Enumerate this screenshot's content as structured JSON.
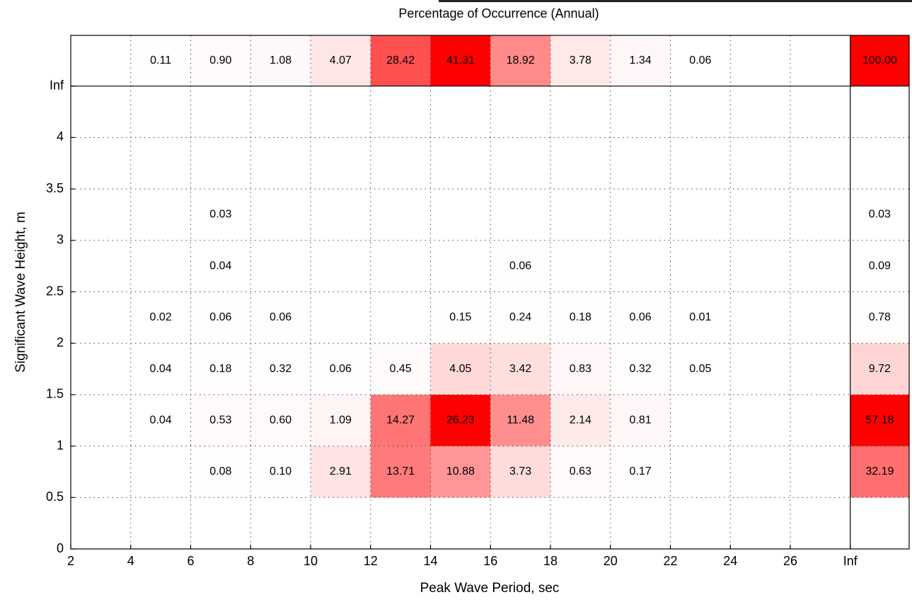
{
  "chart_data": {
    "type": "heatmap",
    "title": "Percentage of Occurrence (Annual)",
    "x_label": "Peak Wave Period, sec",
    "y_label": "Significant Wave Height, m",
    "x_edges": [
      2,
      4,
      6,
      8,
      10,
      12,
      14,
      16,
      18,
      20,
      22,
      24,
      26,
      "Inf"
    ],
    "y_edges": [
      0,
      0.5,
      1,
      1.5,
      2,
      2.5,
      3,
      3.5,
      4,
      "Inf"
    ],
    "values": [
      [
        null,
        null,
        null,
        null,
        null,
        null,
        null,
        null,
        null,
        null,
        null,
        null,
        null
      ],
      [
        null,
        null,
        0.08,
        0.1,
        2.91,
        13.71,
        10.88,
        3.73,
        0.63,
        0.17,
        null,
        null,
        null
      ],
      [
        null,
        0.04,
        0.53,
        0.6,
        1.09,
        14.27,
        26.23,
        11.48,
        2.14,
        0.81,
        null,
        null,
        null
      ],
      [
        null,
        0.04,
        0.18,
        0.32,
        0.06,
        0.45,
        4.05,
        3.42,
        0.83,
        0.32,
        0.05,
        null,
        null
      ],
      [
        null,
        0.02,
        0.06,
        0.06,
        null,
        null,
        0.15,
        0.24,
        0.18,
        0.06,
        0.01,
        null,
        null
      ],
      [
        null,
        null,
        0.04,
        null,
        null,
        null,
        null,
        0.06,
        null,
        null,
        null,
        null,
        null
      ],
      [
        null,
        null,
        0.03,
        null,
        null,
        null,
        null,
        null,
        null,
        null,
        null,
        null,
        null
      ],
      [
        null,
        null,
        null,
        null,
        null,
        null,
        null,
        null,
        null,
        null,
        null,
        null,
        null
      ],
      [
        null,
        null,
        null,
        null,
        null,
        null,
        null,
        null,
        null,
        null,
        null,
        null,
        null
      ]
    ],
    "value_labels": [
      [
        null,
        null,
        null,
        null,
        null,
        null,
        null,
        null,
        null,
        null,
        null,
        null,
        null
      ],
      [
        null,
        null,
        "0.08",
        "0.10",
        "2.91",
        "13.71",
        "10.88",
        "3.73",
        "0.63",
        "0.17",
        null,
        null,
        null
      ],
      [
        null,
        "0.04",
        "0.53",
        "0.60",
        "1.09",
        "14.27",
        "26.23",
        "11.48",
        "2.14",
        "0.81",
        null,
        null,
        null
      ],
      [
        null,
        "0.04",
        "0.18",
        "0.32",
        "0.06",
        "0.45",
        "4.05",
        "3.42",
        "0.83",
        "0.32",
        "0.05",
        null,
        null
      ],
      [
        null,
        "0.02",
        "0.06",
        "0.06",
        null,
        null,
        "0.15",
        "0.24",
        "0.18",
        "0.06",
        "0.01",
        null,
        null
      ],
      [
        null,
        null,
        "0.04",
        null,
        null,
        null,
        null,
        "0.06",
        null,
        null,
        null,
        null,
        null
      ],
      [
        null,
        null,
        "0.03",
        null,
        null,
        null,
        null,
        null,
        null,
        null,
        null,
        null,
        null
      ],
      [
        null,
        null,
        null,
        null,
        null,
        null,
        null,
        null,
        null,
        null,
        null,
        null,
        null
      ],
      [
        null,
        null,
        null,
        null,
        null,
        null,
        null,
        null,
        null,
        null,
        null,
        null,
        null
      ]
    ],
    "row_totals": [
      null,
      32.19,
      57.18,
      9.72,
      0.78,
      0.09,
      0.03,
      null,
      null
    ],
    "row_total_labels": [
      null,
      "32.19",
      "57.18",
      "9.72",
      "0.78",
      "0.09",
      "0.03",
      null,
      null
    ],
    "column_totals": [
      null,
      0.11,
      0.9,
      1.08,
      4.07,
      28.42,
      41.31,
      18.92,
      3.78,
      1.34,
      0.06,
      null,
      null
    ],
    "column_total_labels": [
      null,
      "0.11",
      "0.90",
      "1.08",
      "4.07",
      "28.42",
      "41.31",
      "18.92",
      "3.78",
      "1.34",
      "0.06",
      null,
      null
    ],
    "grand_total": 100,
    "grand_total_label": "100.00",
    "color": "#ff0000",
    "grid": true
  }
}
